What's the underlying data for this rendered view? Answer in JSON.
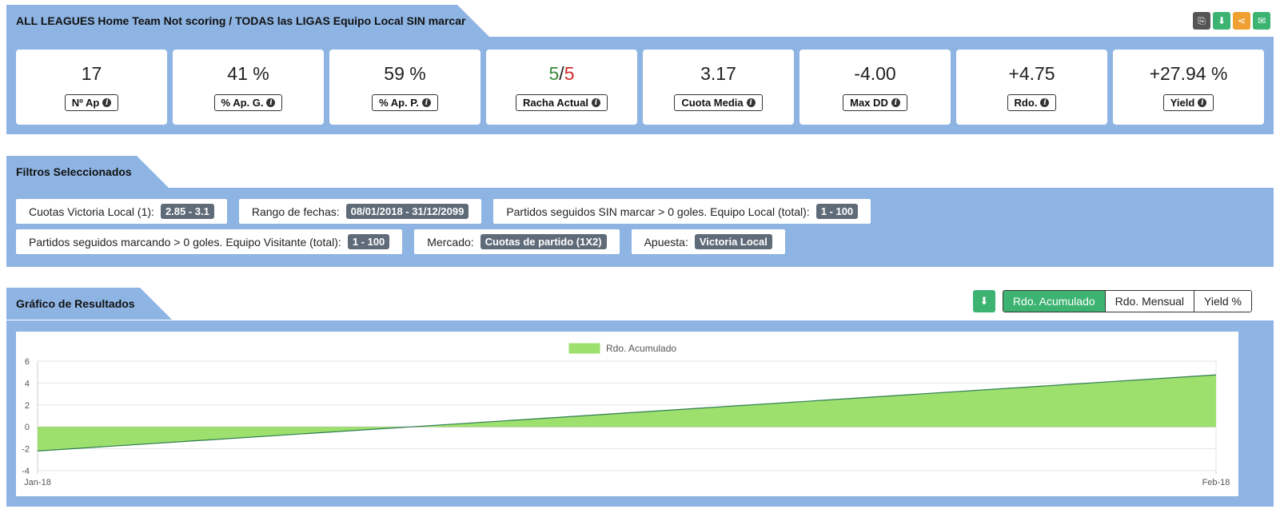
{
  "header": {
    "title": "ALL LEAGUES Home Team Not scoring / TODAS las LIGAS Equipo Local SIN marcar",
    "icons": [
      {
        "name": "copy-icon",
        "color": "#555555",
        "glyph": "⎘"
      },
      {
        "name": "download-icon",
        "color": "#3cb371",
        "glyph": "⬇"
      },
      {
        "name": "share-icon",
        "color": "#f0a030",
        "glyph": "⋖"
      },
      {
        "name": "email-icon",
        "color": "#3cb371",
        "glyph": "✉"
      }
    ]
  },
  "stats": [
    {
      "value": "17",
      "label": "Nº Ap"
    },
    {
      "value": "41 %",
      "label": "% Ap. G."
    },
    {
      "value": "59 %",
      "label": "% Ap. P."
    },
    {
      "value_a": "5",
      "sep": "/",
      "value_b": "5",
      "label": "Racha Actual"
    },
    {
      "value": "3.17",
      "label": "Cuota Media"
    },
    {
      "value": "-4.00",
      "label": "Max DD"
    },
    {
      "value": "+4.75",
      "label": "Rdo."
    },
    {
      "value": "+27.94 %",
      "label": "Yield"
    }
  ],
  "filters": {
    "title": "Filtros Seleccionados",
    "row1": [
      {
        "label": "Cuotas Victoria Local (1):",
        "value": "2.85 - 3.1"
      },
      {
        "label": "Rango de fechas:",
        "value": "08/01/2018 - 31/12/2099"
      },
      {
        "label": "Partidos seguidos SIN marcar > 0 goles. Equipo Local (total):",
        "value": "1 - 100"
      }
    ],
    "row2": [
      {
        "label": "Partidos seguidos marcando > 0 goles. Equipo Visitante (total):",
        "value": "1 - 100"
      },
      {
        "label": "Mercado:",
        "value": "Cuotas de partido (1X2)"
      },
      {
        "label": "Apuesta:",
        "value": "Victoria Local"
      }
    ]
  },
  "results": {
    "title": "Gráfico de Resultados",
    "tabs": [
      "Rdo. Acumulado",
      "Rdo. Mensual",
      "Yield %"
    ],
    "active_tab": "Rdo. Acumulado"
  },
  "chart_data": {
    "type": "area",
    "x": [
      "Jan-18",
      "Feb-18"
    ],
    "series": [
      {
        "name": "Rdo. Acumulado",
        "values": [
          -2.2,
          4.75
        ],
        "color": "#9ee06e"
      }
    ],
    "ylim": [
      -4,
      6
    ],
    "yticks": [
      6,
      4,
      2,
      0,
      -2,
      -4
    ],
    "legend": "top-center",
    "grid": true
  }
}
